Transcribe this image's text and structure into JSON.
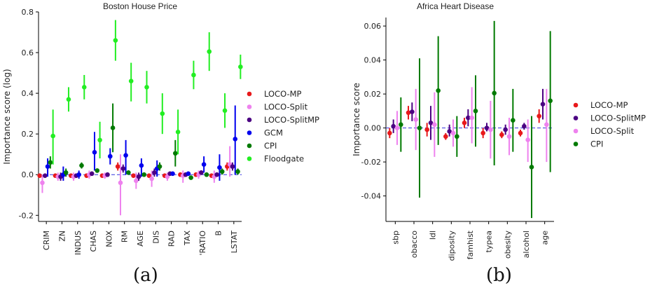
{
  "captions": [
    "(a)",
    "(b)"
  ],
  "chart_data": [
    {
      "type": "scatter",
      "title": "Boston House Price",
      "xlabel": "",
      "ylabel": "Importance score (log)",
      "ylim": [
        -0.23,
        0.8
      ],
      "yticks": [
        "-0.2",
        "0.0",
        "0.2",
        "0.4",
        "0.6",
        "0.8"
      ],
      "ytick_values": [
        -0.2,
        0.0,
        0.2,
        0.4,
        0.6,
        0.8
      ],
      "categories": [
        "CRIM",
        "ZN",
        "INDUS",
        "CHAS",
        "NOX",
        "RM",
        "AGE",
        "DIS",
        "RAD",
        "TAX",
        "'RATIO",
        "B",
        "LSTAT"
      ],
      "reference_line": 0,
      "legend_position": "right",
      "series": [
        {
          "name": "LOCO-MP",
          "color": "#e8191b",
          "values": [
            -0.005,
            -0.005,
            -0.005,
            -0.005,
            -0.005,
            0.04,
            -0.005,
            -0.005,
            -0.005,
            0.0,
            0.0,
            -0.005,
            0.04
          ],
          "low": [
            -0.015,
            -0.015,
            -0.015,
            -0.015,
            -0.015,
            0.02,
            -0.015,
            -0.015,
            -0.015,
            -0.01,
            -0.01,
            -0.015,
            0.02
          ],
          "high": [
            0.005,
            0.005,
            0.005,
            0.005,
            0.005,
            0.06,
            0.005,
            0.005,
            0.005,
            0.01,
            0.01,
            0.005,
            0.06
          ]
        },
        {
          "name": "LOCO-Split",
          "color": "#ee82ee",
          "values": [
            -0.04,
            -0.01,
            -0.01,
            0.0,
            -0.005,
            -0.04,
            -0.03,
            -0.02,
            -0.01,
            -0.005,
            0.0,
            -0.01,
            0.05
          ],
          "low": [
            -0.09,
            -0.03,
            -0.03,
            -0.02,
            -0.02,
            -0.2,
            -0.07,
            -0.06,
            -0.03,
            -0.04,
            -0.02,
            -0.04,
            -0.01
          ],
          "high": [
            0.0,
            0.01,
            0.01,
            0.02,
            0.01,
            0.1,
            0.01,
            0.02,
            0.01,
            0.02,
            0.02,
            0.02,
            0.14
          ]
        },
        {
          "name": "LOCO-SplitMP",
          "color": "#4b0082",
          "values": [
            -0.005,
            -0.01,
            -0.005,
            0.005,
            0.0,
            0.03,
            -0.01,
            0.01,
            0.005,
            0.0,
            0.01,
            0.0,
            0.04
          ],
          "low": [
            -0.015,
            -0.03,
            -0.015,
            -0.005,
            -0.01,
            0.01,
            -0.03,
            -0.01,
            -0.005,
            -0.01,
            0.0,
            -0.01,
            0.02
          ],
          "high": [
            0.005,
            0.01,
            0.005,
            0.015,
            0.01,
            0.05,
            0.01,
            0.03,
            0.015,
            0.01,
            0.02,
            0.01,
            0.06
          ]
        },
        {
          "name": "GCM",
          "color": "#0000ee",
          "values": [
            0.04,
            0.0,
            0.0,
            0.11,
            0.09,
            0.095,
            0.045,
            0.03,
            0.005,
            0.005,
            0.05,
            0.035,
            0.175
          ],
          "low": [
            -0.01,
            -0.03,
            -0.02,
            0.02,
            0.05,
            0.0,
            -0.01,
            -0.01,
            0.0,
            -0.005,
            0.01,
            -0.03,
            0.0
          ],
          "high": [
            0.08,
            0.04,
            0.02,
            0.21,
            0.13,
            0.17,
            0.08,
            0.07,
            0.01,
            0.015,
            0.09,
            0.1,
            0.34
          ]
        },
        {
          "name": "CPI",
          "color": "#007a00",
          "values": [
            0.06,
            0.01,
            0.045,
            0.02,
            0.23,
            0.01,
            0.0,
            0.04,
            0.105,
            -0.015,
            0.0,
            0.015,
            0.015
          ],
          "low": [
            0.03,
            -0.01,
            0.03,
            0.01,
            0.11,
            0.0,
            -0.01,
            0.02,
            0.04,
            -0.025,
            -0.01,
            0.0,
            0.0
          ],
          "high": [
            0.09,
            0.03,
            0.06,
            0.03,
            0.35,
            0.02,
            0.01,
            0.06,
            0.17,
            -0.005,
            0.01,
            0.03,
            0.03
          ]
        },
        {
          "name": "Floodgate",
          "color": "#22ee22",
          "values": [
            0.19,
            0.37,
            0.43,
            0.17,
            0.66,
            0.46,
            0.43,
            0.3,
            0.21,
            0.49,
            0.605,
            0.315,
            0.53
          ],
          "low": [
            0.05,
            0.31,
            0.37,
            0.08,
            0.56,
            0.36,
            0.35,
            0.2,
            0.1,
            0.42,
            0.51,
            0.23,
            0.47
          ],
          "high": [
            0.32,
            0.43,
            0.49,
            0.26,
            0.76,
            0.55,
            0.51,
            0.4,
            0.32,
            0.56,
            0.7,
            0.4,
            0.59
          ]
        }
      ]
    },
    {
      "type": "scatter",
      "title": "Africa Heart Disease",
      "xlabel": "",
      "ylabel": "Importance score",
      "ylim": [
        -0.055,
        0.065
      ],
      "yticks": [
        "-0.04",
        "-0.02",
        "0.00",
        "0.02",
        "0.04",
        "0.06"
      ],
      "ytick_values": [
        -0.04,
        -0.02,
        0.0,
        0.02,
        0.04,
        0.06
      ],
      "categories": [
        "sbp",
        "obacco",
        "ldl",
        "diposity",
        "famhist",
        "typea",
        "obesity",
        "alcohol",
        "age"
      ],
      "reference_line": 0,
      "legend_position": "right",
      "series": [
        {
          "name": "LOCO-MP",
          "color": "#e8191b",
          "values": [
            -0.003,
            0.009,
            -0.001,
            -0.005,
            0.003,
            -0.003,
            -0.004,
            -0.003,
            0.007
          ],
          "low": [
            -0.006,
            0.005,
            -0.005,
            -0.007,
            0.0,
            -0.006,
            -0.006,
            -0.005,
            0.003
          ],
          "high": [
            0.0,
            0.013,
            0.003,
            -0.003,
            0.006,
            0.0,
            -0.002,
            -0.001,
            0.011
          ]
        },
        {
          "name": "LOCO-SplitMP",
          "color": "#4b0082",
          "values": [
            0.001,
            0.0095,
            0.003,
            -0.002,
            0.006,
            0.0,
            -0.001,
            0.001,
            0.014
          ],
          "low": [
            -0.003,
            0.004,
            -0.007,
            -0.005,
            0.001,
            -0.002,
            -0.004,
            -0.001,
            0.005
          ],
          "high": [
            0.005,
            0.015,
            0.013,
            0.002,
            0.011,
            0.003,
            0.002,
            0.003,
            0.023
          ]
        },
        {
          "name": "LOCO-Split",
          "color": "#ee82ee",
          "values": [
            0.0,
            0.005,
            0.002,
            -0.003,
            0.006,
            -0.001,
            -0.005,
            -0.007,
            0.002
          ],
          "low": [
            -0.01,
            -0.013,
            -0.017,
            -0.011,
            -0.009,
            -0.018,
            -0.016,
            -0.02,
            -0.02
          ],
          "high": [
            0.01,
            0.023,
            0.021,
            0.005,
            0.024,
            0.016,
            0.006,
            0.005,
            0.023
          ]
        },
        {
          "name": "CPI",
          "color": "#007a00",
          "values": [
            0.002,
            0.0,
            0.022,
            -0.005,
            0.01,
            0.0205,
            0.0045,
            -0.023,
            0.016
          ],
          "low": [
            -0.014,
            -0.041,
            -0.01,
            -0.017,
            -0.011,
            -0.022,
            -0.014,
            -0.053,
            -0.026
          ],
          "high": [
            0.018,
            0.041,
            0.054,
            0.007,
            0.031,
            0.063,
            0.023,
            0.007,
            0.057
          ]
        }
      ]
    }
  ]
}
